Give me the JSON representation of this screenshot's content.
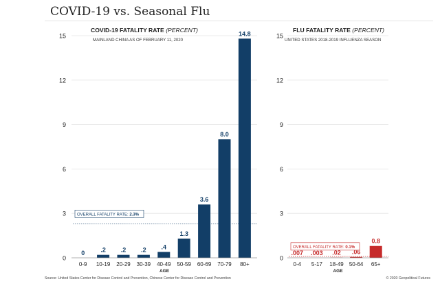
{
  "title": "COVID-19 vs. Seasonal Flu",
  "source": "Source: United States Center for Disease Control and Prevention, Chinese Center for Disease Control and Prevention",
  "copyright": "© 2020 Geopolitical Futures",
  "colors": {
    "covid_bar": "#123e67",
    "flu_bar": "#c62a2a",
    "covid_text": "#123e67",
    "flu_text": "#c62a2a",
    "grid": "#e4e4e4"
  },
  "chart_data": [
    {
      "type": "bar",
      "title": "COVID-19 FATALITY RATE",
      "title_suffix": "(PERCENT)",
      "subtitle": "MAINLAND CHINA AS OF FEBRUARY 11, 2020",
      "xlabel": "AGE",
      "categories": [
        "0-9",
        "10-19",
        "20-29",
        "30-39",
        "40-49",
        "50-59",
        "60-69",
        "70-79",
        "80+"
      ],
      "values": [
        0,
        0.2,
        0.2,
        0.2,
        0.4,
        1.3,
        3.6,
        8.0,
        14.8
      ],
      "data_labels": [
        "0",
        ".2",
        ".2",
        ".2",
        ".4",
        "1.3",
        "3.6",
        "8.0",
        "14.8"
      ],
      "ylim": [
        0,
        15
      ],
      "yticks": [
        "0",
        "3",
        "6",
        "9",
        "12",
        "15"
      ],
      "reference_line": {
        "label": "OVERALL FATALITY RATE:",
        "value_label": "2.3%",
        "value": 2.3
      },
      "grid": true
    },
    {
      "type": "bar",
      "title": "FLU FATALITY RATE",
      "title_suffix": "(PERCENT)",
      "subtitle": "UNITED STATES 2018-2019 INFLUENZA SEASON",
      "xlabel": "AGE",
      "categories": [
        "0-4",
        "5-17",
        "18-49",
        "50-64",
        "65+"
      ],
      "values": [
        0.007,
        0.003,
        0.02,
        0.06,
        0.8
      ],
      "data_labels": [
        ".007",
        ".003",
        ".02",
        ".06",
        "0.8"
      ],
      "ylim": [
        0,
        15
      ],
      "yticks": [
        "0",
        "3",
        "6",
        "9",
        "12",
        "15"
      ],
      "reference_line": {
        "label": "OVERALL FATALITY RATE:",
        "value_label": "0.1%",
        "value": 0.1
      },
      "grid": true
    }
  ]
}
